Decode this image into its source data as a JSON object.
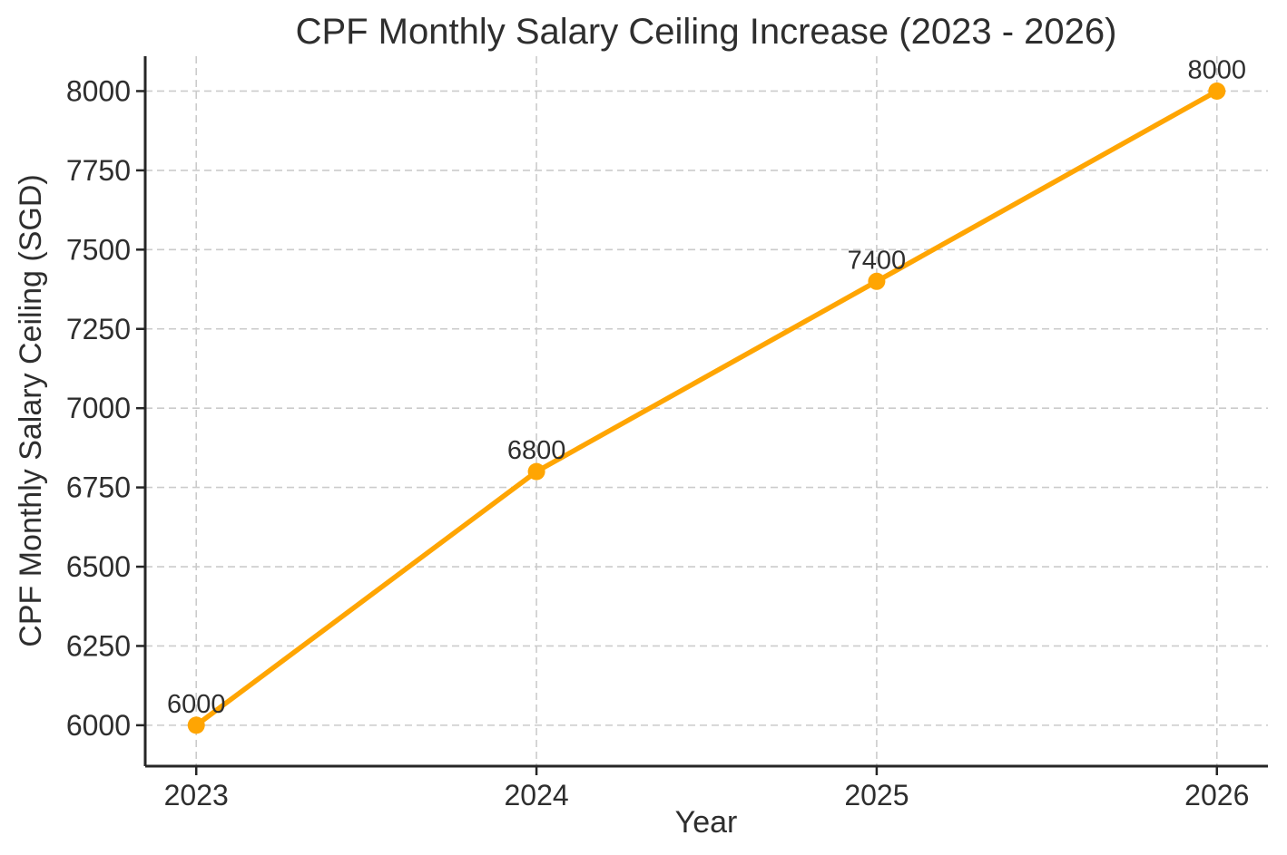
{
  "chart_data": {
    "type": "line",
    "title": "CPF Monthly Salary Ceiling Increase (2023 - 2026)",
    "xlabel": "Year",
    "ylabel": "CPF Monthly Salary Ceiling (SGD)",
    "x": [
      2023,
      2024,
      2025,
      2026
    ],
    "x_tick_labels": [
      "2023",
      "2024",
      "2025",
      "2026"
    ],
    "y_ticks": [
      6000,
      6250,
      6500,
      6750,
      7000,
      7250,
      7500,
      7750,
      8000
    ],
    "y_tick_labels": [
      "6000",
      "6250",
      "6500",
      "6750",
      "7000",
      "7250",
      "7500",
      "7750",
      "8000"
    ],
    "series": [
      {
        "name": "CPF Monthly Salary Ceiling",
        "values": [
          6000,
          6800,
          7400,
          8000
        ],
        "point_labels": [
          "6000",
          "6800",
          "7400",
          "8000"
        ]
      }
    ],
    "xlim": [
      2022.85,
      2026.15
    ],
    "ylim": [
      5871,
      8110
    ],
    "grid": true,
    "grid_style": "dashed",
    "legend_position": "none",
    "colors": {
      "line": "#FFA502",
      "marker": "#FFA502",
      "grid": "#CBCBCB",
      "spine": "#262626",
      "text": "#2E2E2E",
      "background": "#FFFFFF"
    }
  }
}
